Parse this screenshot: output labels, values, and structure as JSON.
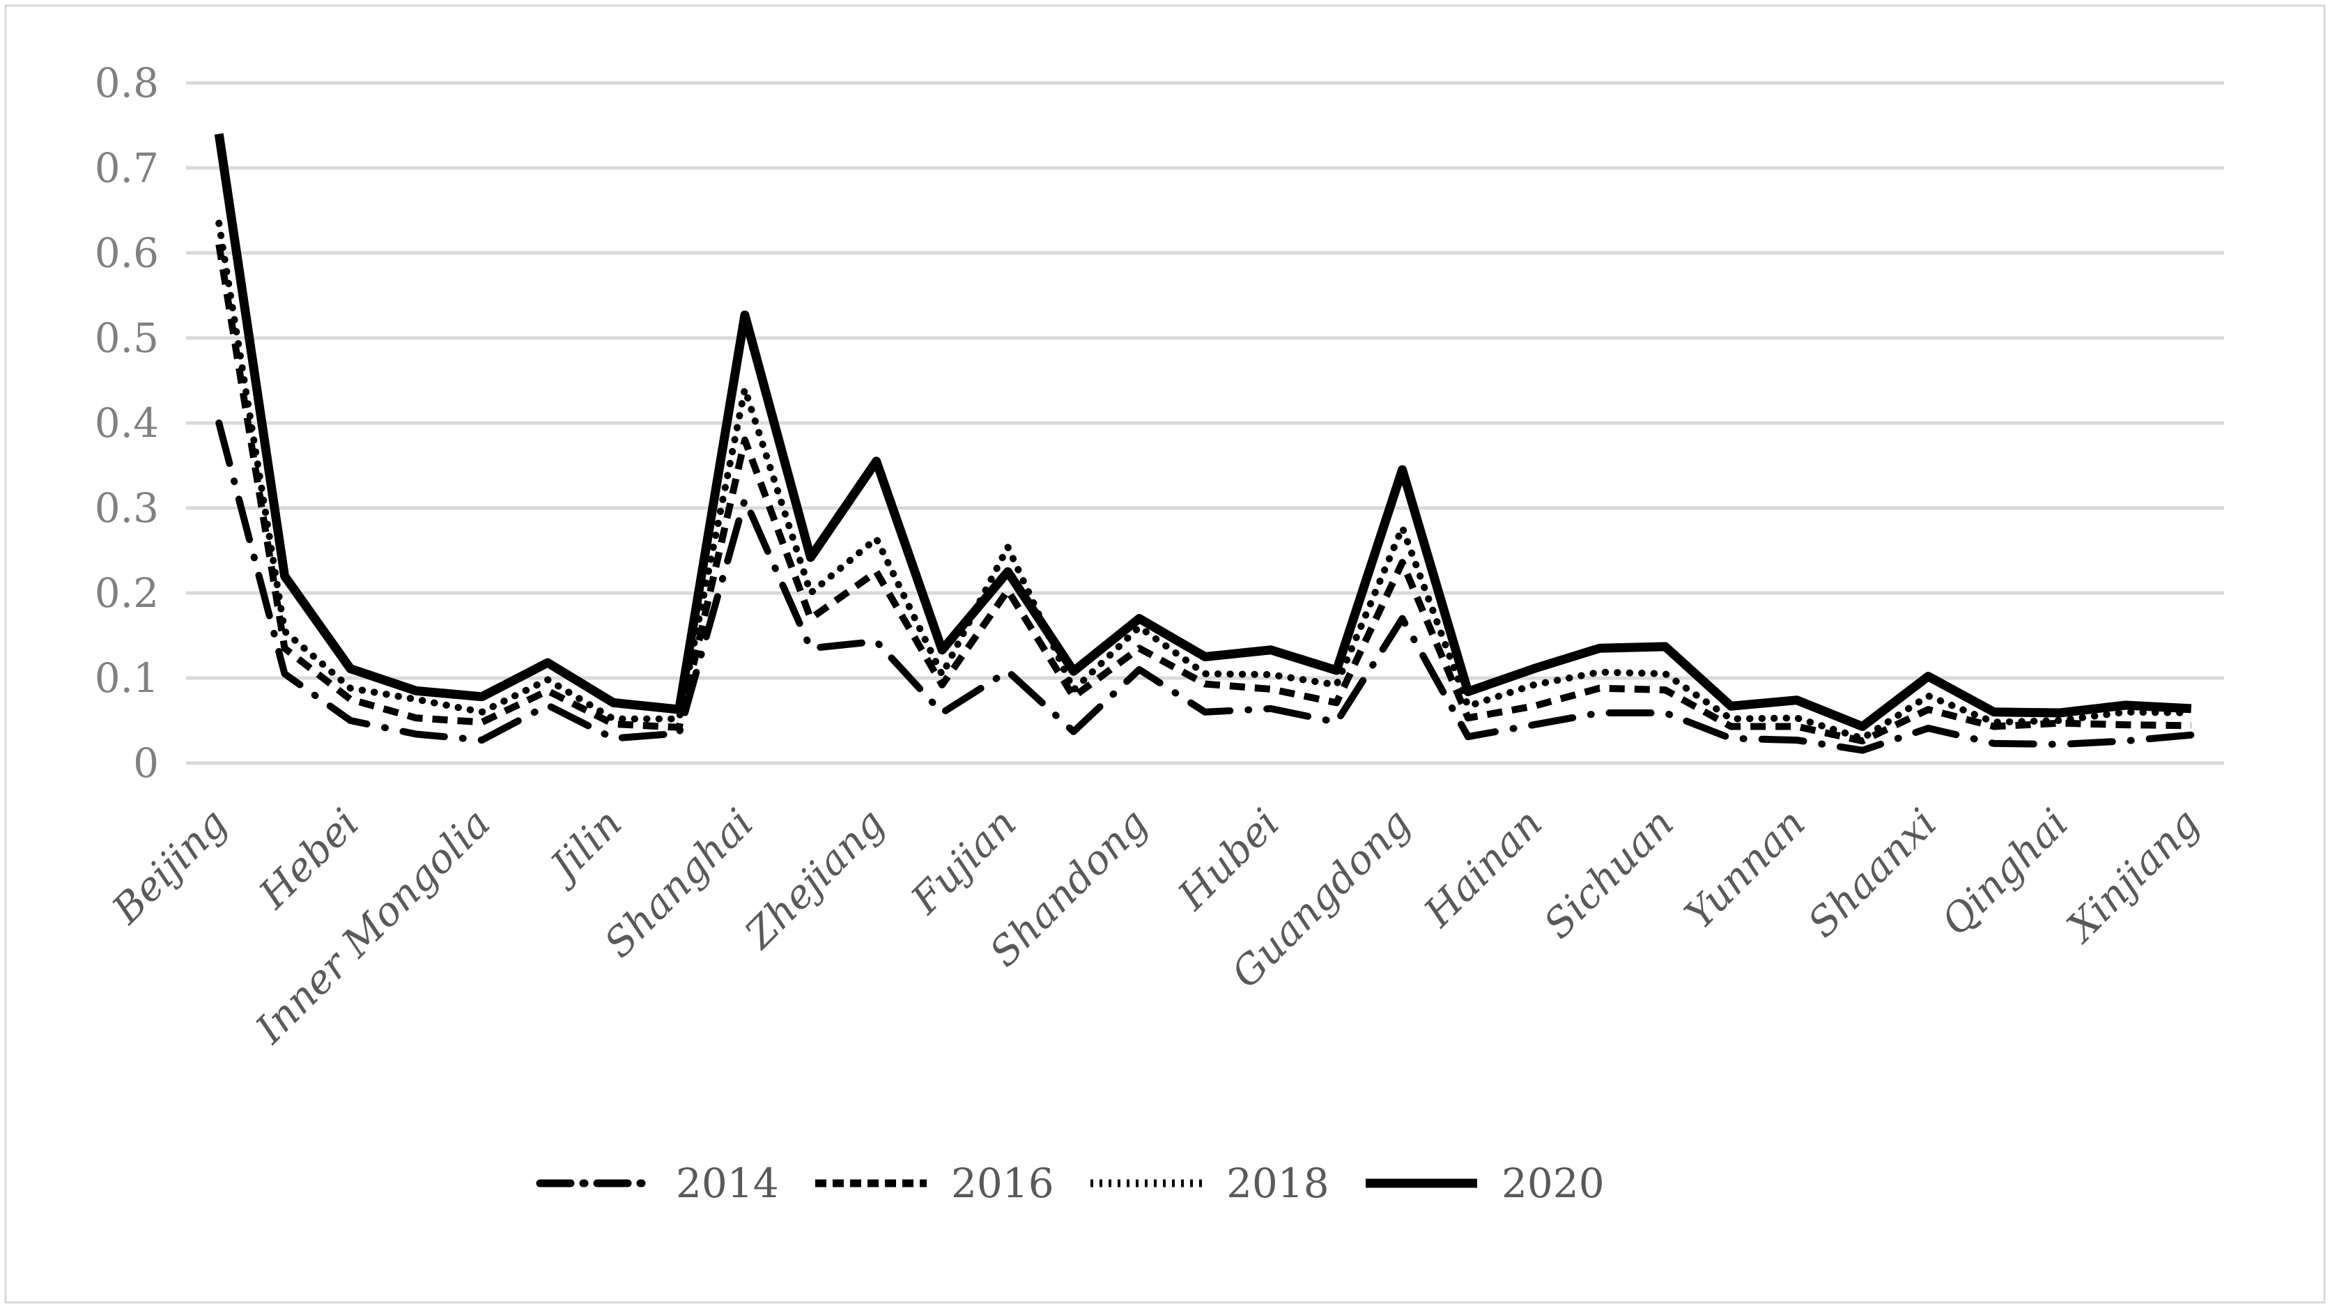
{
  "chart_data": {
    "type": "line",
    "title": "",
    "n_points": 31,
    "x_tick_labels": [
      "Beijing",
      "Hebei",
      "Inner Mongolia",
      "Jilin",
      "Shanghai",
      "Zhejiang",
      "Fujian",
      "Shandong",
      "Hubei",
      "Guangdong",
      "Hainan",
      "Sichuan",
      "Yunnan",
      "Shaanxi",
      "Qinghai",
      "Xinjiang"
    ],
    "x_tick_label_positions": [
      0,
      2,
      4,
      6,
      8,
      10,
      12,
      14,
      16,
      18,
      20,
      22,
      24,
      26,
      28,
      30
    ],
    "ylim": [
      0,
      0.8
    ],
    "y_ticks": [
      0,
      0.1,
      0.2,
      0.3,
      0.4,
      0.5,
      0.6,
      0.7,
      0.8
    ],
    "y_tick_labels": [
      "0",
      "0.1",
      "0.2",
      "0.3",
      "0.4",
      "0.5",
      "0.6",
      "0.7",
      "0.8"
    ],
    "grid": "horizontal",
    "legend_position": "bottom",
    "series": [
      {
        "name": "2014",
        "line_style": "dash-dot",
        "color": "#000000",
        "values": [
          0.4,
          0.105,
          0.05,
          0.034,
          0.027,
          0.068,
          0.029,
          0.035,
          0.31,
          0.135,
          0.143,
          0.059,
          0.108,
          0.037,
          0.11,
          0.06,
          0.064,
          0.048,
          0.17,
          0.031,
          0.045,
          0.059,
          0.059,
          0.029,
          0.027,
          0.015,
          0.041,
          0.023,
          0.022,
          0.026,
          0.033
        ]
      },
      {
        "name": "2016",
        "line_style": "dashed",
        "color": "#000000",
        "values": [
          0.61,
          0.135,
          0.075,
          0.053,
          0.048,
          0.085,
          0.046,
          0.042,
          0.38,
          0.17,
          0.225,
          0.092,
          0.203,
          0.078,
          0.135,
          0.093,
          0.087,
          0.071,
          0.236,
          0.053,
          0.067,
          0.088,
          0.086,
          0.043,
          0.043,
          0.026,
          0.063,
          0.043,
          0.047,
          0.045,
          0.044
        ]
      },
      {
        "name": "2018",
        "line_style": "dotted",
        "color": "#000000",
        "values": [
          0.635,
          0.155,
          0.088,
          0.075,
          0.06,
          0.098,
          0.052,
          0.052,
          0.44,
          0.2,
          0.264,
          0.104,
          0.254,
          0.086,
          0.16,
          0.105,
          0.104,
          0.092,
          0.277,
          0.067,
          0.092,
          0.107,
          0.105,
          0.052,
          0.053,
          0.029,
          0.079,
          0.048,
          0.05,
          0.06,
          0.059
        ]
      },
      {
        "name": "2020",
        "line_style": "solid",
        "color": "#000000",
        "values": [
          0.74,
          0.22,
          0.111,
          0.085,
          0.078,
          0.118,
          0.071,
          0.063,
          0.527,
          0.242,
          0.355,
          0.133,
          0.225,
          0.108,
          0.17,
          0.125,
          0.133,
          0.109,
          0.345,
          0.084,
          0.111,
          0.135,
          0.137,
          0.067,
          0.074,
          0.043,
          0.102,
          0.06,
          0.059,
          0.068,
          0.064
        ]
      }
    ],
    "legend_labels": [
      "2014",
      "2016",
      "2018",
      "2020"
    ]
  },
  "colors": {
    "background": "#ffffff",
    "figure_border": "#d9d9d9",
    "gridline": "#d9d9d9",
    "y_tick_text": "#808080",
    "x_tick_text": "#595959",
    "legend_text": "#595959",
    "line": "#000000"
  }
}
